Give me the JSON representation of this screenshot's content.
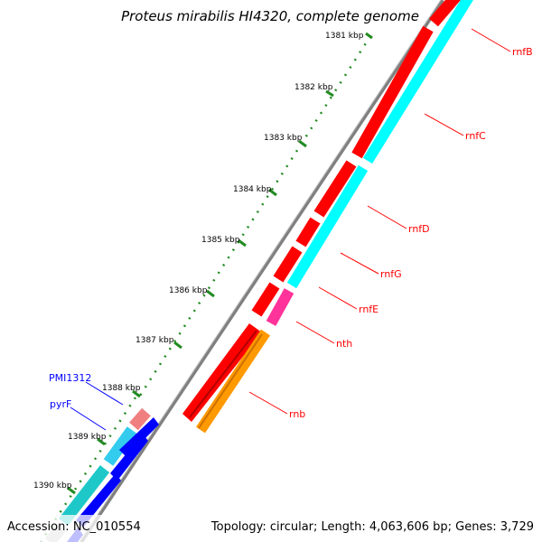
{
  "title": "Proteus mirabilis HI4320, complete genome",
  "footer": {
    "accession": "Accession: NC_010554",
    "summary": "Topology: circular; Length: 4,063,606 bp; Genes: 3,729"
  },
  "ticks": [
    {
      "label": "1381 kbp"
    },
    {
      "label": "1382 kbp"
    },
    {
      "label": "1383 kbp"
    },
    {
      "label": "1384 kbp"
    },
    {
      "label": "1385 kbp"
    },
    {
      "label": "1386 kbp"
    },
    {
      "label": "1387 kbp"
    },
    {
      "label": "1388 kbp"
    },
    {
      "label": "1389 kbp"
    },
    {
      "label": "1390 kbp"
    }
  ],
  "gene_labels": [
    {
      "name": "rnfB",
      "color": "#ff0000"
    },
    {
      "name": "rnfC",
      "color": "#ff0000"
    },
    {
      "name": "rnfD",
      "color": "#ff0000"
    },
    {
      "name": "rnfG",
      "color": "#ff0000"
    },
    {
      "name": "rnfE",
      "color": "#ff0000"
    },
    {
      "name": "nth",
      "color": "#ff0000"
    },
    {
      "name": "rnb",
      "color": "#ff0000"
    },
    {
      "name": "PMI1312",
      "color": "#0000ff"
    },
    {
      "name": "pyrF",
      "color": "#0000ff"
    }
  ],
  "colors": {
    "backbone": "#808080",
    "cds_forward": "#ff0000",
    "cds_reverse_cyan": "#00ffff",
    "magenta_feature": "#ff3399",
    "orange_feature": "#ff9900",
    "blue_feature": "#0000ff",
    "teal_feature": "#1fc8c8",
    "pink_feature": "#f08080",
    "tick_color": "#228b22"
  }
}
